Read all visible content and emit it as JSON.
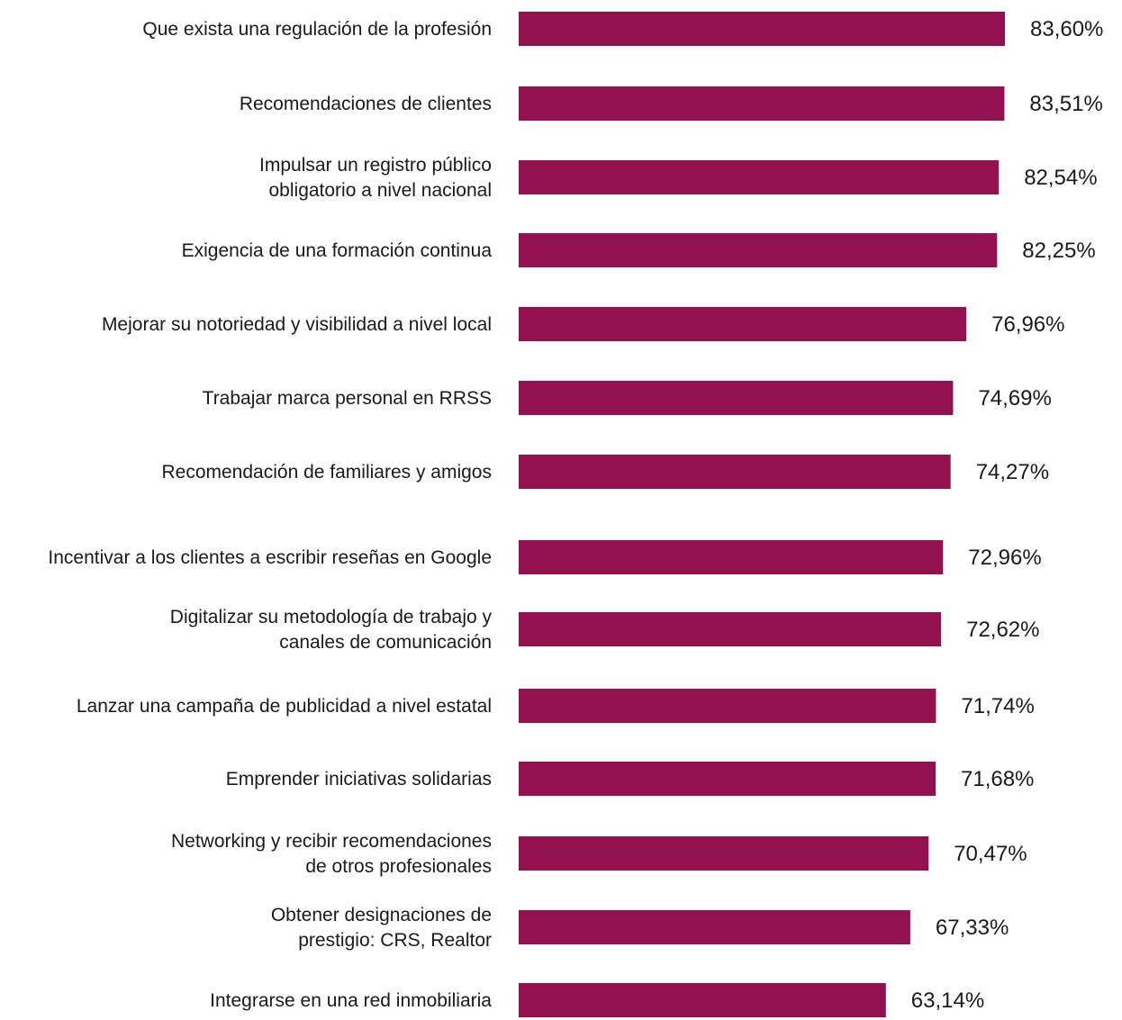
{
  "chart_data": {
    "type": "bar",
    "orientation": "horizontal",
    "bar_color": "#93114e",
    "categories": [
      [
        "Que exista una regulación de la profesión"
      ],
      [
        "Recomendaciones de clientes"
      ],
      [
        "Impulsar un registro público",
        "obligatorio a nivel nacional"
      ],
      [
        "Exigencia de una formación continua"
      ],
      [
        "Mejorar su notoriedad y visibilidad a nivel local"
      ],
      [
        "Trabajar marca personal en RRSS"
      ],
      [
        "Recomendación de familiares y amigos"
      ],
      [
        "Incentivar a los clientes a escribir reseñas en Google"
      ],
      [
        "Digitalizar su metodología de trabajo y",
        "canales de comunicación"
      ],
      [
        "Lanzar una campaña de publicidad a nivel estatal"
      ],
      [
        "Emprender iniciativas solidarias"
      ],
      [
        "Networking y recibir recomendaciones",
        "de otros profesionales"
      ],
      [
        "Obtener designaciones de",
        "prestigio: CRS, Realtor"
      ],
      [
        "Integrarse en una red inmobiliaria"
      ]
    ],
    "values": [
      83.6,
      83.51,
      82.54,
      82.25,
      76.96,
      74.69,
      74.27,
      72.96,
      72.62,
      71.74,
      71.68,
      70.47,
      67.33,
      63.14
    ],
    "value_labels": [
      "83,60%",
      "83,51%",
      "82,54%",
      "82,25%",
      "76,96%",
      "74,69%",
      "74,27%",
      "72,96%",
      "72,62%",
      "71,74%",
      "71,68%",
      "70,47%",
      "67,33%",
      "63,14%"
    ],
    "xlim": [
      0,
      100
    ],
    "grid": false,
    "legend": "none"
  }
}
